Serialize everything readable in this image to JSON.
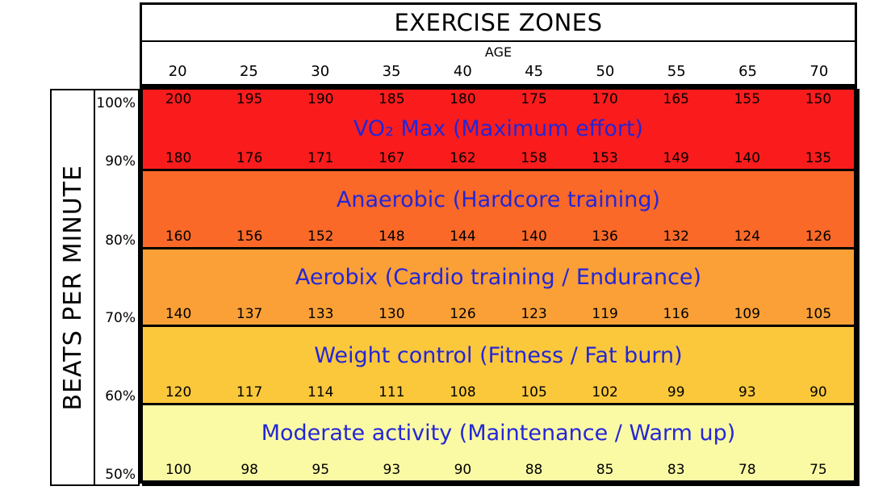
{
  "title": "EXERCISE ZONES",
  "age_axis": {
    "label": "AGE",
    "ticks": [
      "20",
      "25",
      "30",
      "35",
      "40",
      "45",
      "50",
      "55",
      "65",
      "70"
    ]
  },
  "y_axis": {
    "label": "BEATS PER MINUTE"
  },
  "accent_text_color": "#2426d6",
  "zones": [
    {
      "name": "vo2-max",
      "label": "VO₂ Max (Maximum effort)",
      "color": "#fa1c1c",
      "rows": [
        {
          "percent": "100%",
          "values": [
            "200",
            "195",
            "190",
            "185",
            "180",
            "175",
            "170",
            "165",
            "155",
            "150"
          ]
        },
        {
          "percent": "90%",
          "values": [
            "180",
            "176",
            "171",
            "167",
            "162",
            "158",
            "153",
            "149",
            "140",
            "135"
          ]
        }
      ]
    },
    {
      "name": "anaerobic",
      "label": "Anaerobic (Hardcore training)",
      "color": "#fa6928",
      "rows": [
        {
          "percent": "80%",
          "values": [
            "160",
            "156",
            "152",
            "148",
            "144",
            "140",
            "136",
            "132",
            "124",
            "126"
          ]
        }
      ]
    },
    {
      "name": "aerobic",
      "label": "Aerobix (Cardio training / Endurance)",
      "color": "#faa037",
      "rows": [
        {
          "percent": "70%",
          "values": [
            "140",
            "137",
            "133",
            "130",
            "126",
            "123",
            "119",
            "116",
            "109",
            "105"
          ]
        }
      ]
    },
    {
      "name": "weight-control",
      "label": "Weight control (Fitness / Fat burn)",
      "color": "#fbc83c",
      "rows": [
        {
          "percent": "60%",
          "values": [
            "120",
            "117",
            "114",
            "111",
            "108",
            "105",
            "102",
            "99",
            "93",
            "90"
          ]
        }
      ]
    },
    {
      "name": "moderate-activity",
      "label": "Moderate activity (Maintenance / Warm up)",
      "color": "#fafaa5",
      "rows": [
        {
          "percent": "50%",
          "values": [
            "100",
            "98",
            "95",
            "93",
            "90",
            "88",
            "85",
            "83",
            "78",
            "75"
          ]
        }
      ]
    }
  ],
  "chart_data": {
    "type": "heatmap",
    "title": "EXERCISE ZONES",
    "xlabel": "AGE",
    "ylabel": "BEATS PER MINUTE",
    "x_ticks": [
      20,
      25,
      30,
      35,
      40,
      45,
      50,
      55,
      65,
      70
    ],
    "y_ticks_percent": [
      "100%",
      "90%",
      "80%",
      "70%",
      "60%",
      "50%"
    ],
    "grid": false,
    "legend_position": "none",
    "rows": [
      {
        "percent": "100%",
        "zone": "VO₂ Max (Maximum effort)",
        "color": "#fa1c1c",
        "values": [
          200,
          195,
          190,
          185,
          180,
          175,
          170,
          165,
          155,
          150
        ]
      },
      {
        "percent": "90%",
        "zone": "VO₂ Max (Maximum effort)",
        "color": "#fa1c1c",
        "values": [
          180,
          176,
          171,
          167,
          162,
          158,
          153,
          149,
          140,
          135
        ]
      },
      {
        "percent": "80%",
        "zone": "Anaerobic (Hardcore training)",
        "color": "#fa6928",
        "values": [
          160,
          156,
          152,
          148,
          144,
          140,
          136,
          132,
          124,
          126
        ]
      },
      {
        "percent": "70%",
        "zone": "Aerobix (Cardio training / Endurance)",
        "color": "#faa037",
        "values": [
          140,
          137,
          133,
          130,
          126,
          123,
          119,
          116,
          109,
          105
        ]
      },
      {
        "percent": "60%",
        "zone": "Weight control (Fitness / Fat burn)",
        "color": "#fbc83c",
        "values": [
          120,
          117,
          114,
          111,
          108,
          105,
          102,
          99,
          93,
          90
        ]
      },
      {
        "percent": "50%",
        "zone": "Moderate activity (Maintenance / Warm up)",
        "color": "#fafaa5",
        "values": [
          100,
          98,
          95,
          93,
          90,
          88,
          85,
          83,
          78,
          75
        ]
      }
    ]
  }
}
